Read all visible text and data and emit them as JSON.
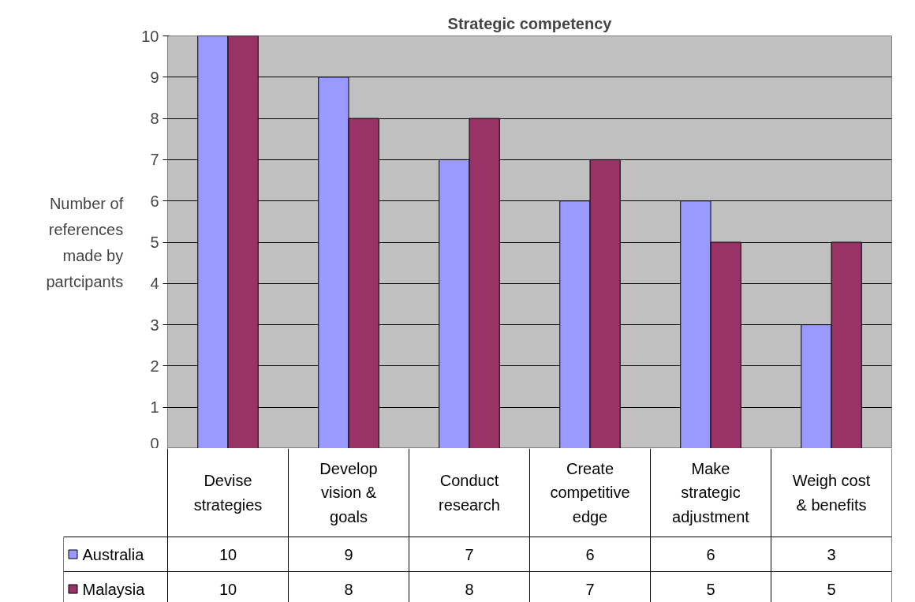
{
  "chart_data": {
    "type": "bar",
    "title": "Strategic competency",
    "ylabel": "Number of references made by partcipants",
    "categories": [
      "Devise strategies",
      "Develop vision & goals",
      "Conduct research",
      "Create competitive edge",
      "Make strategic adjustment",
      "Weigh cost & benefits"
    ],
    "series": [
      {
        "name": "Australia",
        "color": "#9999ff",
        "values": [
          10,
          9,
          7,
          6,
          6,
          3
        ]
      },
      {
        "name": "Malaysia",
        "color": "#993366",
        "values": [
          10,
          8,
          8,
          7,
          5,
          5
        ]
      }
    ],
    "ylim": [
      0,
      10
    ],
    "yticks": [
      0,
      1,
      2,
      3,
      4,
      5,
      6,
      7,
      8,
      9,
      10
    ],
    "grid": "y",
    "legend": "bottom",
    "data_labels": true
  }
}
